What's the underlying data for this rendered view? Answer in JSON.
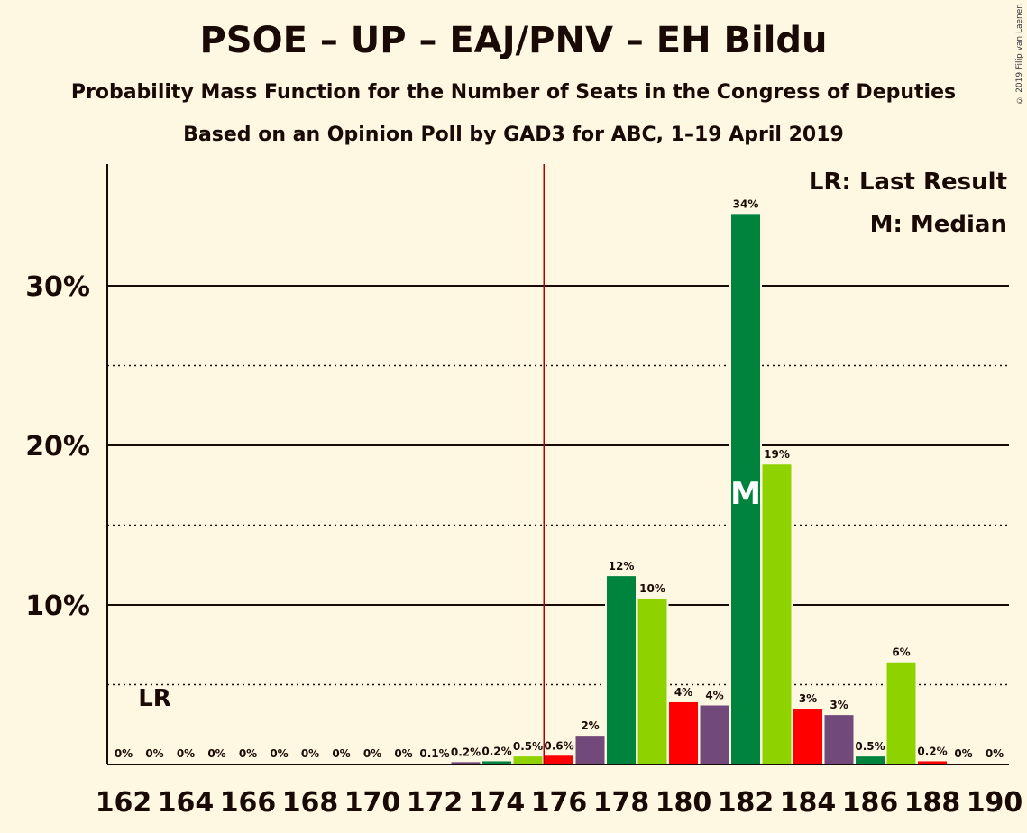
{
  "title": "PSOE – UP – EAJ/PNV – EH Bildu",
  "subtitle": "Probability Mass Function for the Number of Seats in the Congress of Deputies",
  "subtitle2": "Based on an Opinion Poll by GAD3 for ABC, 1–19 April 2019",
  "copyright": "© 2019 Filip van Laenen",
  "legend": {
    "last_result": "LR: Last Result",
    "median": "M: Median"
  },
  "markers": {
    "last_result_label": "LR",
    "median_label": "M",
    "last_result_seats": 163,
    "median_seats": 182,
    "majority_line_seats": 175.5
  },
  "colors": {
    "dark_green": "#00843d",
    "light_green": "#8ed300",
    "red": "#ff0000",
    "purple": "#72497b",
    "background": "#fef8e2",
    "majority_line": "#b00000"
  },
  "chart_data": {
    "type": "bar",
    "xlabel": "",
    "ylabel": "",
    "ylim": [
      0,
      37.5
    ],
    "yticks": [
      10,
      20,
      30
    ],
    "ytick_labels": [
      "10%",
      "20%",
      "30%"
    ],
    "x_tick_labels": [
      "162",
      "164",
      "166",
      "168",
      "170",
      "172",
      "174",
      "176",
      "178",
      "180",
      "182",
      "184",
      "186",
      "188",
      "190"
    ],
    "x_tick_values": [
      162,
      164,
      166,
      168,
      170,
      172,
      174,
      176,
      178,
      180,
      182,
      184,
      186,
      188,
      190
    ],
    "grid": "solid at 10/20/30, dotted at 5/15/25",
    "bars": [
      {
        "seats": 162,
        "value": 0,
        "label": "0%",
        "color": "dark_green"
      },
      {
        "seats": 163,
        "value": 0,
        "label": "0%",
        "color": "light_green"
      },
      {
        "seats": 164,
        "value": 0,
        "label": "0%",
        "color": "red"
      },
      {
        "seats": 165,
        "value": 0,
        "label": "0%",
        "color": "purple"
      },
      {
        "seats": 166,
        "value": 0,
        "label": "0%",
        "color": "dark_green"
      },
      {
        "seats": 167,
        "value": 0,
        "label": "0%",
        "color": "light_green"
      },
      {
        "seats": 168,
        "value": 0,
        "label": "0%",
        "color": "red"
      },
      {
        "seats": 169,
        "value": 0,
        "label": "0%",
        "color": "purple"
      },
      {
        "seats": 170,
        "value": 0,
        "label": "0%",
        "color": "dark_green"
      },
      {
        "seats": 171,
        "value": 0,
        "label": "0%",
        "color": "light_green"
      },
      {
        "seats": 172,
        "value": 0.05,
        "label": "0.1%",
        "color": "red"
      },
      {
        "seats": 173,
        "value": 0.15,
        "label": "0.2%",
        "color": "purple"
      },
      {
        "seats": 174,
        "value": 0.2,
        "label": "0.2%",
        "color": "dark_green"
      },
      {
        "seats": 175,
        "value": 0.5,
        "label": "0.5%",
        "color": "light_green"
      },
      {
        "seats": 176,
        "value": 0.55,
        "label": "0.6%",
        "color": "red"
      },
      {
        "seats": 177,
        "value": 1.8,
        "label": "2%",
        "color": "purple"
      },
      {
        "seats": 178,
        "value": 11.8,
        "label": "12%",
        "color": "dark_green"
      },
      {
        "seats": 179,
        "value": 10.4,
        "label": "10%",
        "color": "light_green"
      },
      {
        "seats": 180,
        "value": 3.9,
        "label": "4%",
        "color": "red"
      },
      {
        "seats": 181,
        "value": 3.7,
        "label": "4%",
        "color": "purple"
      },
      {
        "seats": 182,
        "value": 34.5,
        "label": "34%",
        "color": "dark_green"
      },
      {
        "seats": 183,
        "value": 18.8,
        "label": "19%",
        "color": "light_green"
      },
      {
        "seats": 184,
        "value": 3.5,
        "label": "3%",
        "color": "red"
      },
      {
        "seats": 185,
        "value": 3.1,
        "label": "3%",
        "color": "purple"
      },
      {
        "seats": 186,
        "value": 0.5,
        "label": "0.5%",
        "color": "dark_green"
      },
      {
        "seats": 187,
        "value": 6.4,
        "label": "6%",
        "color": "light_green"
      },
      {
        "seats": 188,
        "value": 0.2,
        "label": "0.2%",
        "color": "red"
      },
      {
        "seats": 189,
        "value": 0,
        "label": "0%",
        "color": "purple"
      },
      {
        "seats": 190,
        "value": 0,
        "label": "0%",
        "color": "dark_green"
      }
    ]
  }
}
